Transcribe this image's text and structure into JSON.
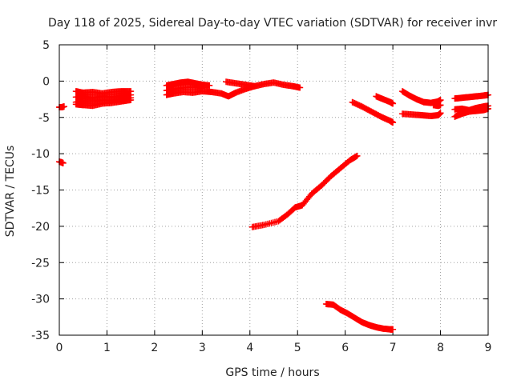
{
  "chart_data": {
    "type": "scatter",
    "title": "Day 118 of 2025, Sidereal Day-to-day VTEC variation (SDTVAR) for receiver invr",
    "xlabel": "GPS time / hours",
    "ylabel": "SDTVAR / TECUs",
    "xlim": [
      0,
      9
    ],
    "ylim": [
      -35,
      5
    ],
    "xticks": [
      0,
      1,
      2,
      3,
      4,
      5,
      6,
      7,
      8,
      9
    ],
    "yticks": [
      -35,
      -30,
      -25,
      -20,
      -15,
      -10,
      -5,
      0,
      5
    ],
    "grid": true,
    "marker": "plus",
    "color": "#ff0000",
    "series": [
      {
        "x": [
          0.0,
          0.05,
          0.1
        ],
        "y": [
          -3.6,
          -3.6,
          -3.5
        ]
      },
      {
        "x": [
          0.0,
          0.05,
          0.08
        ],
        "y": [
          -11.1,
          -11.2,
          -11.3
        ]
      },
      {
        "x": [
          0.35,
          0.5,
          0.7,
          0.9,
          1.1,
          1.3,
          1.5
        ],
        "y": [
          -1.4,
          -1.6,
          -1.5,
          -1.7,
          -1.5,
          -1.4,
          -1.4
        ]
      },
      {
        "x": [
          0.35,
          0.5,
          0.7,
          0.9,
          1.1,
          1.3,
          1.5
        ],
        "y": [
          -2.2,
          -2.1,
          -2.3,
          -2.1,
          -2.2,
          -2.0,
          -1.9
        ]
      },
      {
        "x": [
          0.35,
          0.5,
          0.7,
          0.9,
          1.1,
          1.3,
          1.5
        ],
        "y": [
          -2.9,
          -2.7,
          -2.8,
          -2.6,
          -2.7,
          -2.5,
          -2.3
        ]
      },
      {
        "x": [
          0.35,
          0.5,
          0.7,
          0.9,
          1.1,
          1.3,
          1.5
        ],
        "y": [
          -3.2,
          -3.3,
          -3.4,
          -3.1,
          -3.0,
          -2.8,
          -2.6
        ]
      },
      {
        "x": [
          2.25,
          2.4,
          2.55,
          2.7,
          2.85,
          3.0,
          3.15
        ],
        "y": [
          -0.6,
          -0.4,
          -0.2,
          -0.1,
          -0.3,
          -0.5,
          -0.6
        ]
      },
      {
        "x": [
          2.25,
          2.4,
          2.6,
          2.8,
          3.0,
          3.2,
          3.4,
          3.55,
          3.7,
          3.9,
          4.1
        ],
        "y": [
          -1.9,
          -1.7,
          -1.5,
          -1.6,
          -1.4,
          -1.5,
          -1.7,
          -2.1,
          -1.6,
          -1.1,
          -0.7
        ]
      },
      {
        "x": [
          2.25,
          2.4,
          2.6,
          2.8,
          3.0
        ],
        "y": [
          -1.3,
          -1.1,
          -0.9,
          -0.8,
          -1.0
        ]
      },
      {
        "x": [
          3.5,
          3.7,
          3.9,
          4.1,
          4.3,
          4.5,
          4.7,
          4.9,
          5.05
        ],
        "y": [
          -0.1,
          -0.3,
          -0.5,
          -0.7,
          -0.4,
          -0.2,
          -0.5,
          -0.7,
          -0.9
        ]
      },
      {
        "x": [
          4.05,
          4.3,
          4.6,
          4.8,
          4.95,
          5.1,
          5.3,
          5.5,
          5.7,
          5.9,
          6.1,
          6.25
        ],
        "y": [
          -20.1,
          -19.8,
          -19.3,
          -18.3,
          -17.4,
          -17.1,
          -15.5,
          -14.4,
          -13.1,
          -12.0,
          -10.9,
          -10.3
        ]
      },
      {
        "x": [
          5.6,
          5.75,
          5.9,
          6.05,
          6.2,
          6.35,
          6.5,
          6.65,
          6.8,
          6.95,
          7.0
        ],
        "y": [
          -30.7,
          -30.8,
          -31.5,
          -32.0,
          -32.6,
          -33.2,
          -33.6,
          -33.9,
          -34.1,
          -34.2,
          -34.2
        ]
      },
      {
        "x": [
          6.15,
          6.35,
          6.55,
          6.75,
          6.95,
          7.0
        ],
        "y": [
          -2.9,
          -3.5,
          -4.2,
          -4.9,
          -5.5,
          -5.7
        ]
      },
      {
        "x": [
          6.65,
          6.8,
          6.95,
          7.0
        ],
        "y": [
          -2.1,
          -2.5,
          -2.9,
          -3.1
        ]
      },
      {
        "x": [
          7.2,
          7.35,
          7.5,
          7.65,
          7.8,
          7.95,
          8.0
        ],
        "y": [
          -1.4,
          -2.0,
          -2.5,
          -2.9,
          -3.0,
          -2.8,
          -2.6
        ]
      },
      {
        "x": [
          7.2,
          7.4,
          7.6,
          7.8,
          7.95,
          8.0
        ],
        "y": [
          -4.5,
          -4.6,
          -4.7,
          -4.8,
          -4.7,
          -4.4
        ]
      },
      {
        "x": [
          7.85,
          7.95,
          8.0
        ],
        "y": [
          -3.3,
          -3.4,
          -3.3
        ]
      },
      {
        "x": [
          8.3,
          8.45,
          8.6,
          8.75,
          8.9,
          9.0
        ],
        "y": [
          -2.4,
          -2.3,
          -2.2,
          -2.1,
          -2.0,
          -1.9
        ]
      },
      {
        "x": [
          8.3,
          8.45,
          8.6,
          8.75,
          8.9,
          9.0
        ],
        "y": [
          -3.9,
          -3.8,
          -4.0,
          -3.7,
          -3.5,
          -3.4
        ]
      },
      {
        "x": [
          8.3,
          8.45,
          8.6,
          8.75,
          8.9,
          9.0
        ],
        "y": [
          -4.9,
          -4.5,
          -4.2,
          -4.1,
          -4.0,
          -3.8
        ]
      }
    ]
  }
}
